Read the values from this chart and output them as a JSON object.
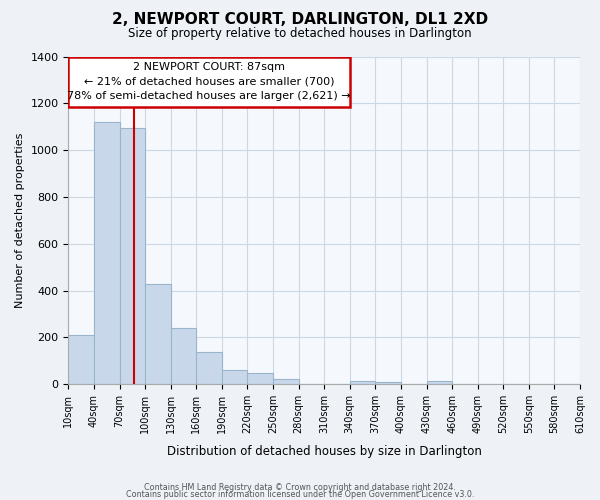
{
  "title": "2, NEWPORT COURT, DARLINGTON, DL1 2XD",
  "subtitle": "Size of property relative to detached houses in Darlington",
  "xlabel": "Distribution of detached houses by size in Darlington",
  "ylabel": "Number of detached properties",
  "bar_color": "#c8d8ea",
  "bar_edge_color": "#9ab4cc",
  "annotation_box_color": "#ffffff",
  "annotation_box_edge": "#cc0000",
  "vline_color": "#cc0000",
  "annotation_line1": "2 NEWPORT COURT: 87sqm",
  "annotation_line2": "← 21% of detached houses are smaller (700)",
  "annotation_line3": "78% of semi-detached houses are larger (2,621) →",
  "property_size_sqm": 87,
  "bin_edges": [
    10,
    40,
    70,
    100,
    130,
    160,
    190,
    220,
    250,
    280,
    310,
    340,
    370,
    400,
    430,
    460,
    490,
    520,
    550,
    580,
    610
  ],
  "bar_heights": [
    210,
    1120,
    1095,
    430,
    240,
    140,
    60,
    47,
    22,
    0,
    0,
    15,
    10,
    0,
    12,
    0,
    0,
    0,
    0,
    0
  ],
  "ylim": [
    0,
    1400
  ],
  "yticks": [
    0,
    200,
    400,
    600,
    800,
    1000,
    1200,
    1400
  ],
  "footer_line1": "Contains HM Land Registry data © Crown copyright and database right 2024.",
  "footer_line2": "Contains public sector information licensed under the Open Government Licence v3.0.",
  "background_color": "#eef2f7",
  "plot_bg_color": "#f5f8fc",
  "grid_color": "#ccd8e4"
}
